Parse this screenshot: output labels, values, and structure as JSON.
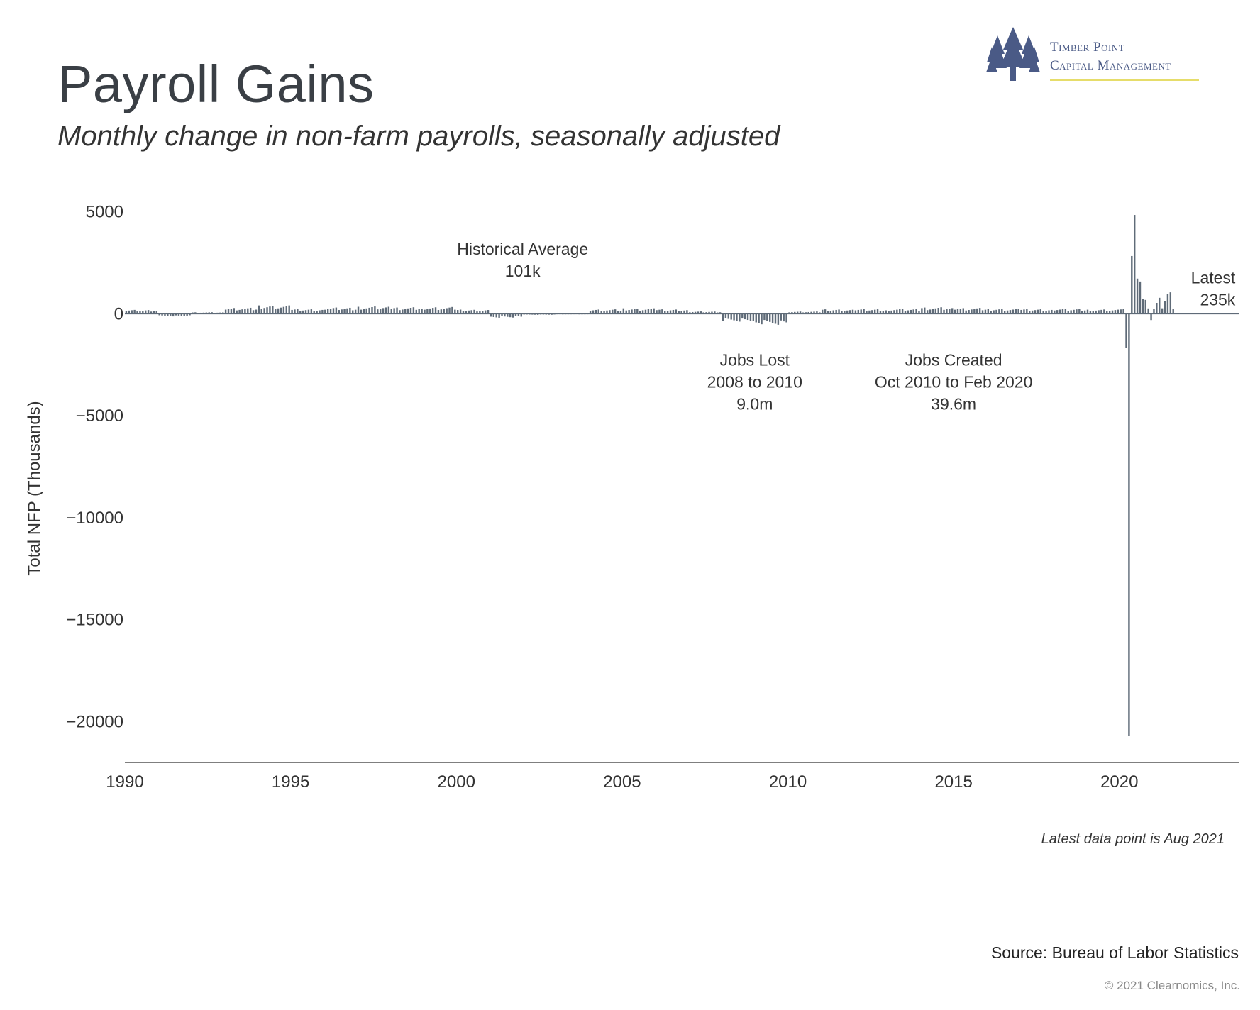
{
  "header": {
    "title": "Payroll Gains",
    "subtitle": "Monthly change in non-farm payrolls, seasonally adjusted"
  },
  "logo": {
    "line1": "Timber Point",
    "line2": "Capital Management",
    "icon": "pine-trees-icon"
  },
  "footer": {
    "note": "Latest data point is Aug 2021",
    "source": "Source: Bureau of Labor Statistics",
    "copyright": "© 2021 Clearnomics, Inc."
  },
  "colors": {
    "bar": "#5f6b78",
    "title": "#3a3f45",
    "jobs_lost": "#c0504d",
    "jobs_created": "#5e8a58",
    "logo": "#4a5a86",
    "logo_rule": "#e6dd6a"
  },
  "chart_data": {
    "type": "bar",
    "title": "Payroll Gains",
    "subtitle": "Monthly change in non-farm payrolls, seasonally adjusted",
    "ylabel": "Total NFP (Thousands)",
    "xlabel": "",
    "ylim": [
      -22000,
      5300
    ],
    "xlim": [
      1990,
      2023.6
    ],
    "yticks": [
      5000,
      0,
      -5000,
      -10000,
      -15000,
      -20000
    ],
    "ytick_labels": [
      "5000",
      "0",
      "−5000",
      "−10000",
      "−15000",
      "−20000"
    ],
    "xticks": [
      1990,
      1995,
      2000,
      2005,
      2010,
      2015,
      2020
    ],
    "xtick_labels": [
      "1990",
      "1995",
      "2000",
      "2005",
      "2010",
      "2015",
      "2020"
    ],
    "grid": false,
    "legend": "none",
    "annual_typical_monthly": [
      {
        "year": 1990,
        "value": 150
      },
      {
        "year": 1991,
        "value": -100
      },
      {
        "year": 1992,
        "value": 60
      },
      {
        "year": 1993,
        "value": 230
      },
      {
        "year": 1994,
        "value": 320
      },
      {
        "year": 1995,
        "value": 180
      },
      {
        "year": 1996,
        "value": 240
      },
      {
        "year": 1997,
        "value": 280
      },
      {
        "year": 1998,
        "value": 250
      },
      {
        "year": 1999,
        "value": 260
      },
      {
        "year": 2000,
        "value": 160
      },
      {
        "year": 2001,
        "value": -150
      },
      {
        "year": 2002,
        "value": -40
      },
      {
        "year": 2003,
        "value": 10
      },
      {
        "year": 2004,
        "value": 170
      },
      {
        "year": 2005,
        "value": 210
      },
      {
        "year": 2006,
        "value": 170
      },
      {
        "year": 2007,
        "value": 90
      },
      {
        "year": 2008,
        "value": -300
      },
      {
        "year": 2009,
        "value": -420
      },
      {
        "year": 2010,
        "value": 90
      },
      {
        "year": 2011,
        "value": 170
      },
      {
        "year": 2012,
        "value": 180
      },
      {
        "year": 2013,
        "value": 190
      },
      {
        "year": 2014,
        "value": 250
      },
      {
        "year": 2015,
        "value": 225
      },
      {
        "year": 2016,
        "value": 195
      },
      {
        "year": 2017,
        "value": 180
      },
      {
        "year": 2018,
        "value": 195
      },
      {
        "year": 2019,
        "value": 165
      }
    ],
    "recent_monthly": [
      {
        "date": "2020-01",
        "value": 214
      },
      {
        "date": "2020-02",
        "value": 251
      },
      {
        "date": "2020-03",
        "value": -1683
      },
      {
        "date": "2020-04",
        "value": -20679
      },
      {
        "date": "2020-05",
        "value": 2833
      },
      {
        "date": "2020-06",
        "value": 4846
      },
      {
        "date": "2020-07",
        "value": 1726
      },
      {
        "date": "2020-08",
        "value": 1583
      },
      {
        "date": "2020-09",
        "value": 716
      },
      {
        "date": "2020-10",
        "value": 680
      },
      {
        "date": "2020-11",
        "value": 264
      },
      {
        "date": "2020-12",
        "value": -306
      },
      {
        "date": "2021-01",
        "value": 233
      },
      {
        "date": "2021-02",
        "value": 536
      },
      {
        "date": "2021-03",
        "value": 785
      },
      {
        "date": "2021-04",
        "value": 269
      },
      {
        "date": "2021-05",
        "value": 614
      },
      {
        "date": "2021-06",
        "value": 962
      },
      {
        "date": "2021-07",
        "value": 1053
      },
      {
        "date": "2021-08",
        "value": 235
      }
    ],
    "annotations": [
      {
        "id": "historical-average",
        "lines": [
          "Historical Average",
          "101k"
        ],
        "x": 2002.0,
        "y": 2900,
        "color": "#333333"
      },
      {
        "id": "jobs-lost",
        "lines": [
          "Jobs Lost",
          "2008 to 2010",
          "9.0m"
        ],
        "x": 2009.0,
        "y": -2550,
        "color": "#c0504d"
      },
      {
        "id": "jobs-created",
        "lines": [
          "Jobs Created",
          "Oct 2010 to Feb 2020",
          "39.6m"
        ],
        "x": 2015.0,
        "y": -2550,
        "color": "#5e8a58"
      },
      {
        "id": "latest",
        "lines": [
          "Latest",
          "235k"
        ],
        "x": 2023.5,
        "y": 1500,
        "color": "#333333"
      }
    ]
  }
}
